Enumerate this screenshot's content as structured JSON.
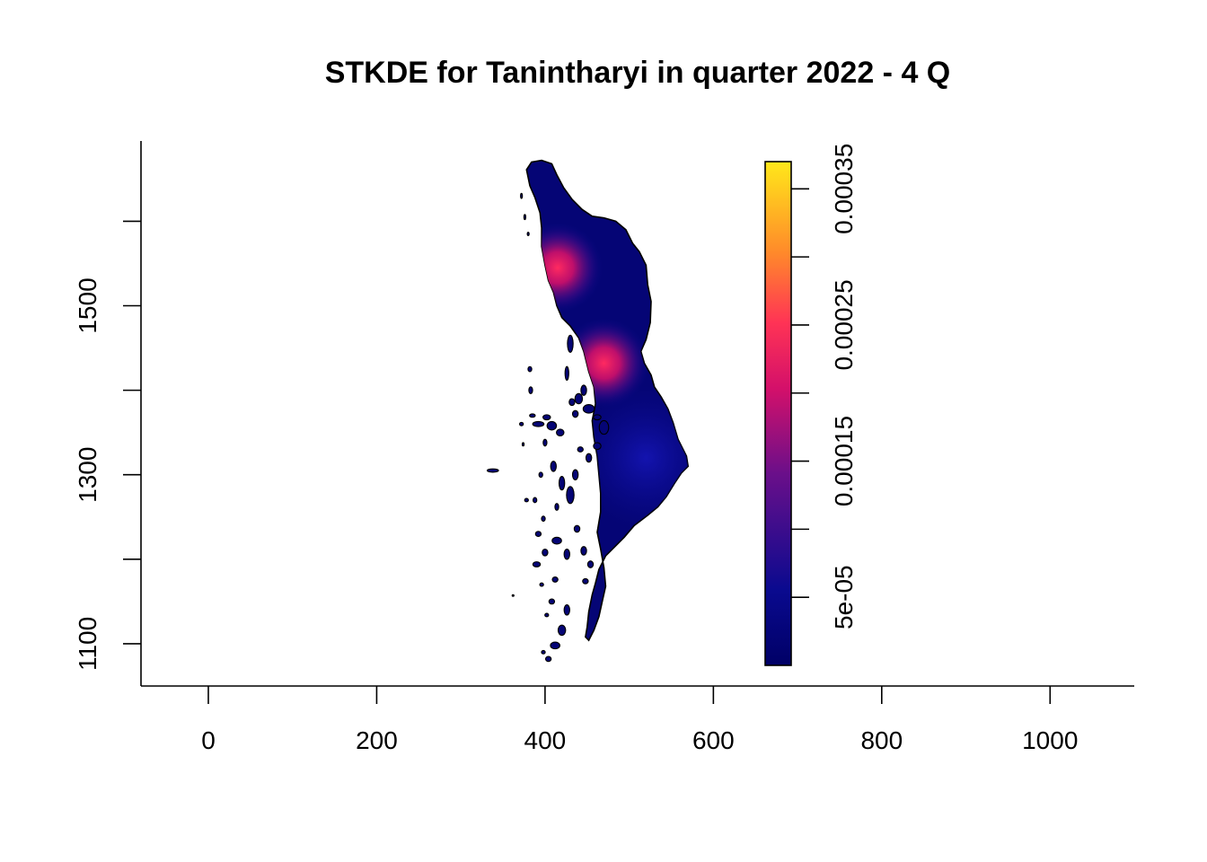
{
  "chart_data": {
    "type": "heatmap",
    "title": "STKDE for Tanintharyi in quarter 2022 - 4 Q",
    "xlabel": "",
    "ylabel": "",
    "x_ticks": [
      0,
      200,
      400,
      600,
      800,
      1000
    ],
    "y_ticks": [
      1100,
      1300,
      1500
    ],
    "x_tick_labels": [
      "0",
      "200",
      "400",
      "600",
      "800",
      "1000"
    ],
    "y_tick_labels": [
      "1100",
      "1300",
      "1500"
    ],
    "xlim": [
      -80,
      1100
    ],
    "ylim": [
      1050,
      1695
    ],
    "grid": false,
    "legend": {
      "type": "colorbar",
      "range": [
        0,
        0.00037
      ],
      "ticks": [
        5e-05,
        0.00015,
        0.00025,
        0.00035
      ],
      "tick_labels": [
        "5e-05",
        "0.00015",
        "0.00025",
        "0.00035"
      ],
      "colors": [
        "#000066",
        "#0a0a8f",
        "#6a0f8a",
        "#d4106a",
        "#ff3355",
        "#ff8a2a",
        "#ffe81a"
      ]
    },
    "hotspots": [
      {
        "x": 415,
        "y": 1545,
        "density": 0.00022
      },
      {
        "x": 470,
        "y": 1432,
        "density": 0.00021
      },
      {
        "x": 520,
        "y": 1320,
        "density": 4e-05
      }
    ]
  }
}
